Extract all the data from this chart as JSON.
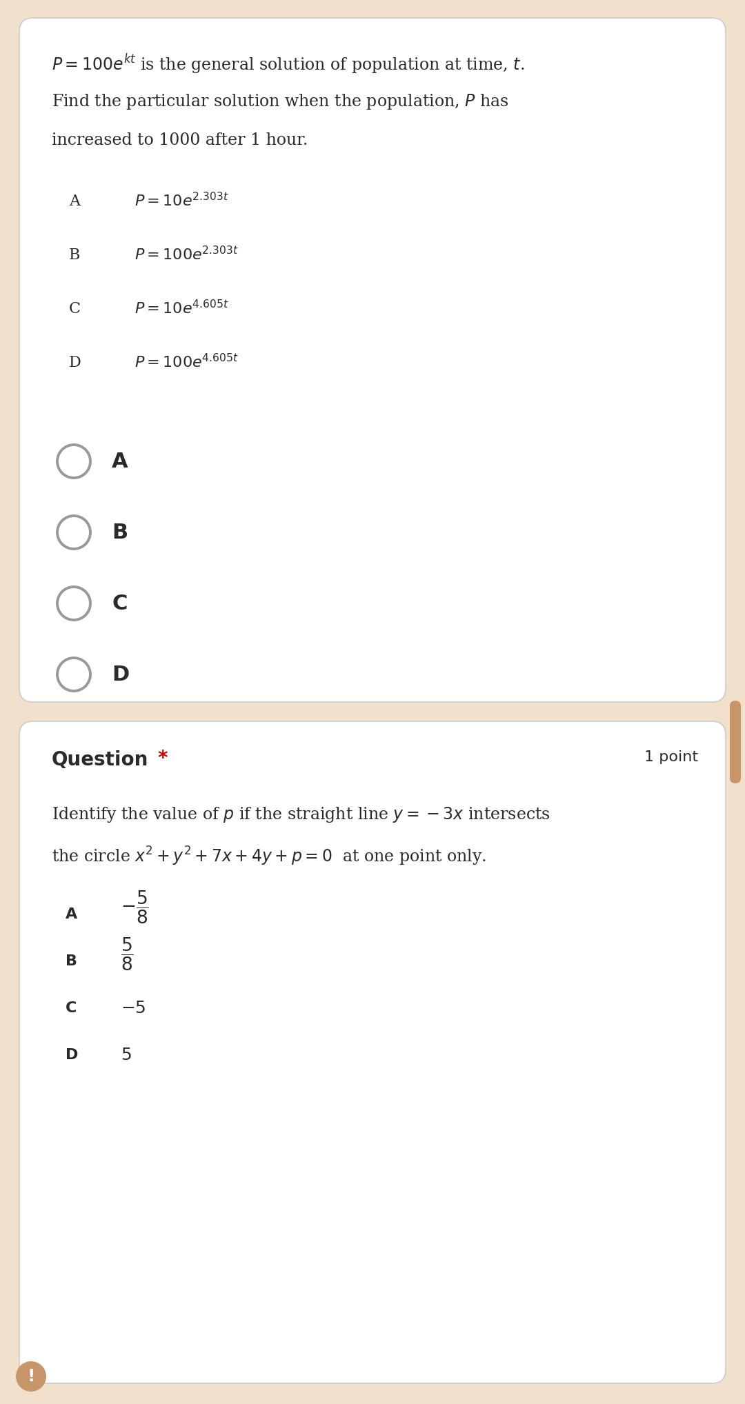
{
  "bg_color": "#f0e0cc",
  "card_color": "#ffffff",
  "text_color": "#2a2a2a",
  "radio_border_color": "#999999",
  "star_color": "#cc0000",
  "card_edge_color": "#dddddd",
  "q1_line1_math": "$P = 100e^{kt}$",
  "q1_line1_rest": " is the general solution of population at time, ",
  "q1_line1_t": "$t$.",
  "q1_line2": "Find the particular solution when the population, $P$ has",
  "q1_line3": "increased to 1000 after 1 hour.",
  "q1_options": [
    [
      "A",
      "$P = 10e^{2.303t}$"
    ],
    [
      "B",
      "$P = 100e^{2.303t}$"
    ],
    [
      "C",
      "$P = 10e^{4.605t}$"
    ],
    [
      "D",
      "$P = 100e^{4.605t}$"
    ]
  ],
  "q1_radio_labels": [
    "A",
    "B",
    "C",
    "D"
  ],
  "q2_header": "Question",
  "q2_points": "1 point",
  "q2_line1": "Identify the value of $p$ if the straight line $y = -3x$ intersects",
  "q2_line2": "the circle $x^2 + y^2 + 7x + 4y + p = 0$  at one point only.",
  "q2_options_labels": [
    "A",
    "B",
    "C",
    "D"
  ],
  "q2_opts_A_minus": true,
  "q2_opts_B_minus": false,
  "q2_opts_C": "-5",
  "q2_opts_D": "5",
  "figw": 10.8,
  "figh": 20.36,
  "dpi": 100
}
